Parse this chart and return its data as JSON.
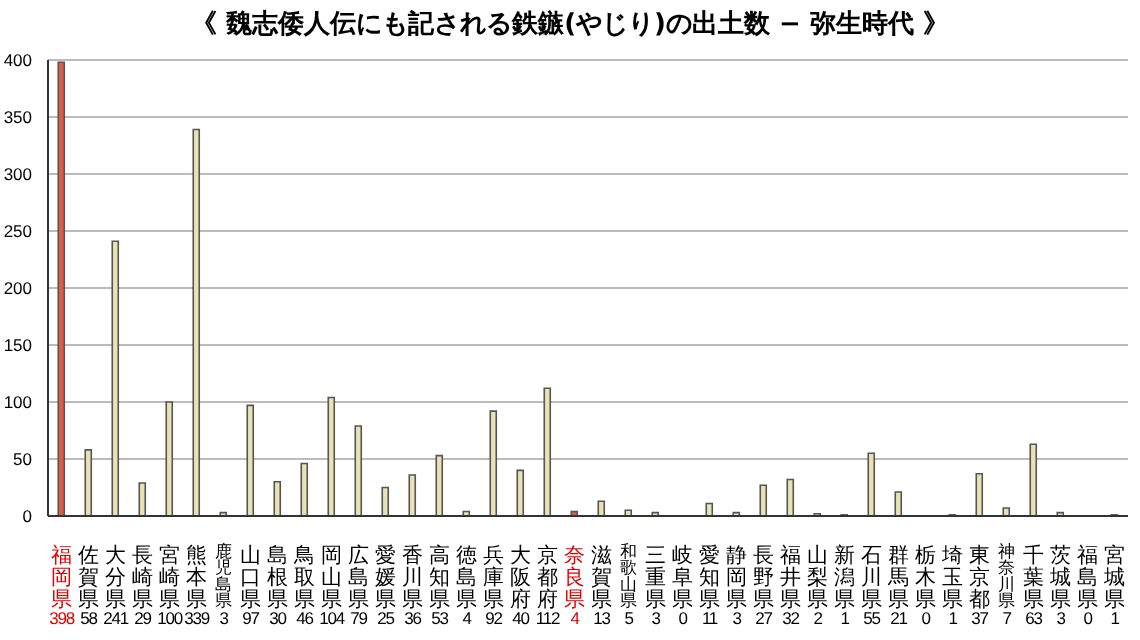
{
  "chart_data": {
    "type": "bar",
    "title": "《 魏志倭人伝にも記される鉄鏃(やじり)の出土数 − 弥生時代 》",
    "categories": [
      "福岡県",
      "佐賀県",
      "大分県",
      "長崎県",
      "宮崎県",
      "熊本県",
      "鹿児島県",
      "山口県",
      "島根県",
      "鳥取県",
      "岡山県",
      "広島県",
      "愛媛県",
      "香川県",
      "高知県",
      "徳島県",
      "兵庫県",
      "大阪府",
      "京都府",
      "奈良県",
      "滋賀県",
      "和歌山県",
      "三重県",
      "岐阜県",
      "愛知県",
      "静岡県",
      "長野県",
      "福井県",
      "山梨県",
      "新潟県",
      "石川県",
      "群馬県",
      "栃木県",
      "埼玉県",
      "東京都",
      "神奈川県",
      "千葉県",
      "茨城県",
      "福島県",
      "宮城県"
    ],
    "values": [
      398,
      58,
      241,
      29,
      100,
      339,
      3,
      97,
      30,
      46,
      104,
      79,
      25,
      36,
      53,
      4,
      92,
      40,
      112,
      4,
      13,
      5,
      3,
      0,
      11,
      3,
      27,
      32,
      2,
      1,
      55,
      21,
      0,
      1,
      37,
      7,
      63,
      3,
      0,
      1
    ],
    "colors": [
      "#e05a48",
      "#e8e2b4",
      "#e8e2b4",
      "#e8e2b4",
      "#e8e2b4",
      "#e8e2b4",
      "#e8e2b4",
      "#e8e2b4",
      "#e8e2b4",
      "#e8e2b4",
      "#e8e2b4",
      "#e8e2b4",
      "#e8e2b4",
      "#e8e2b4",
      "#e8e2b4",
      "#e8e2b4",
      "#e8e2b4",
      "#e8e2b4",
      "#e8e2b4",
      "#e05a48",
      "#e8e2b4",
      "#e8e2b4",
      "#e8e2b4",
      "#e8e2b4",
      "#e8e2b4",
      "#e8e2b4",
      "#e8e2b4",
      "#e8e2b4",
      "#e8e2b4",
      "#e8e2b4",
      "#e8e2b4",
      "#e8e2b4",
      "#e8e2b4",
      "#e8e2b4",
      "#e8e2b4",
      "#e8e2b4",
      "#e8e2b4",
      "#e8e2b4",
      "#e8e2b4",
      "#e8e2b4"
    ],
    "ylim": [
      0,
      400
    ],
    "yticks": [
      0,
      50,
      100,
      150,
      200,
      250,
      300,
      350,
      400
    ],
    "grid": "y",
    "data_labels": true
  }
}
